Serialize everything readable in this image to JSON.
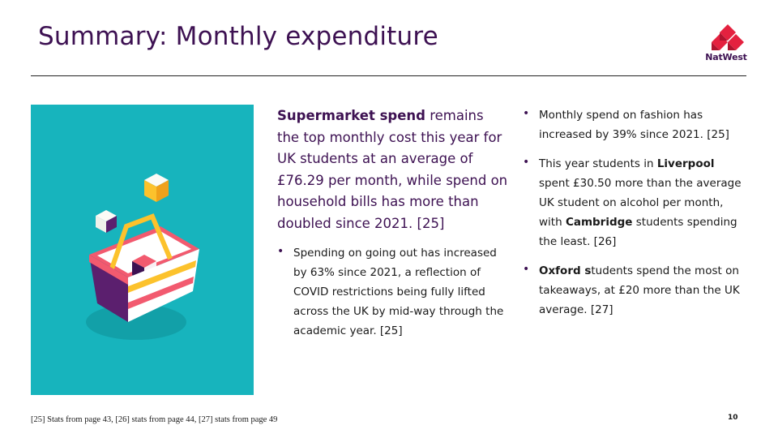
{
  "header": {
    "title": "Summary: Monthly expenditure",
    "brand": "NatWest"
  },
  "lead": {
    "bold": "Supermarket spend",
    "text": " remains the top monthly cost this year for UK students at an average of £76.29 per month, while spend on household bills has more than doubled since 2021. [25]"
  },
  "left_bullets": [
    "Spending on going out has increased by 63% since 2021, a reflection of COVID restrictions being fully lifted across the UK by mid-way through the academic year. [25]"
  ],
  "right_bullets": {
    "b1": "Monthly spend on fashion has increased by 39% since 2021. [25]",
    "b2_pre": "This year students in ",
    "b2_bold1": "Liverpool",
    "b2_mid": " spent £30.50 more than the average UK student on alcohol per month, with ",
    "b2_bold2": "Cambridge",
    "b2_post": " students spending the least. [26]",
    "b3_bold": "Oxford s",
    "b3_post": "tudents spend the most on takeaways, at £20 more than the UK average. [27]"
  },
  "bullet_glyph": "•",
  "footer": "[25] Stats from page 43, [26] stats from page 44, [27] stats from page 49",
  "page_number": "10",
  "colors": {
    "title": "#3d1152",
    "illustration_bg": "#17b4bd",
    "logo_red": "#e4213f"
  }
}
